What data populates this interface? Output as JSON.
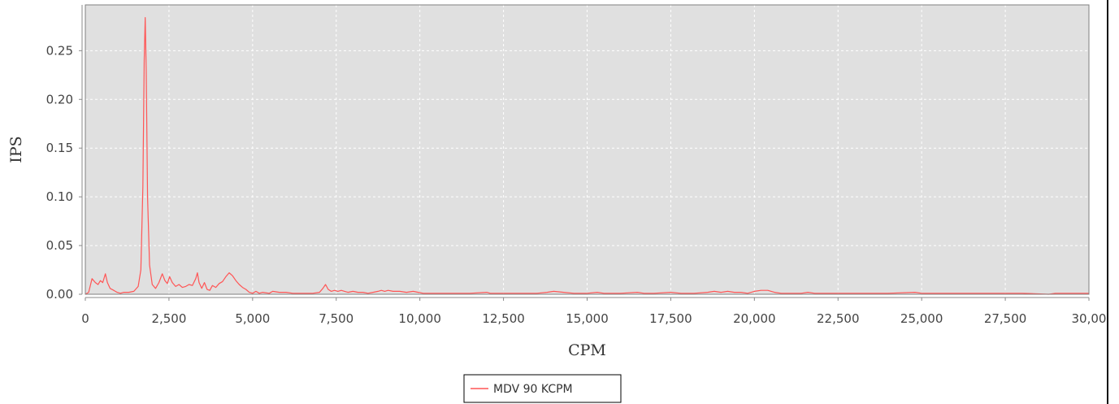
{
  "chart_data": {
    "type": "line",
    "title": "",
    "xlabel": "CPM",
    "ylabel": "IPS",
    "xlim": [
      0,
      30000
    ],
    "ylim": [
      0,
      0.297
    ],
    "x_ticks": [
      "0",
      "2,500",
      "5,000",
      "7,500",
      "10,000",
      "12,500",
      "15,000",
      "17,500",
      "20,000",
      "22,500",
      "25,000",
      "27,500",
      "30,00"
    ],
    "y_ticks": [
      "0.00",
      "0.05",
      "0.10",
      "0.15",
      "0.20",
      "0.25"
    ],
    "grid": true,
    "legend_position": "bottom-center",
    "series": [
      {
        "name": "MDV 90 KCPM",
        "color": "#ff5555",
        "points": [
          [
            0,
            0.0
          ],
          [
            100,
            0.002
          ],
          [
            200,
            0.016
          ],
          [
            300,
            0.012
          ],
          [
            380,
            0.01
          ],
          [
            450,
            0.014
          ],
          [
            520,
            0.012
          ],
          [
            600,
            0.021
          ],
          [
            660,
            0.012
          ],
          [
            740,
            0.006
          ],
          [
            850,
            0.004
          ],
          [
            950,
            0.002
          ],
          [
            1050,
            0.001
          ],
          [
            1150,
            0.002
          ],
          [
            1300,
            0.002
          ],
          [
            1450,
            0.003
          ],
          [
            1580,
            0.008
          ],
          [
            1660,
            0.025
          ],
          [
            1720,
            0.11
          ],
          [
            1760,
            0.24
          ],
          [
            1790,
            0.284
          ],
          [
            1820,
            0.23
          ],
          [
            1860,
            0.1
          ],
          [
            1920,
            0.03
          ],
          [
            2000,
            0.01
          ],
          [
            2100,
            0.006
          ],
          [
            2200,
            0.012
          ],
          [
            2300,
            0.021
          ],
          [
            2380,
            0.014
          ],
          [
            2450,
            0.011
          ],
          [
            2520,
            0.018
          ],
          [
            2600,
            0.012
          ],
          [
            2700,
            0.008
          ],
          [
            2800,
            0.01
          ],
          [
            2900,
            0.007
          ],
          [
            3000,
            0.008
          ],
          [
            3100,
            0.01
          ],
          [
            3200,
            0.009
          ],
          [
            3300,
            0.016
          ],
          [
            3350,
            0.022
          ],
          [
            3400,
            0.012
          ],
          [
            3480,
            0.006
          ],
          [
            3560,
            0.012
          ],
          [
            3640,
            0.005
          ],
          [
            3720,
            0.004
          ],
          [
            3800,
            0.009
          ],
          [
            3900,
            0.007
          ],
          [
            4000,
            0.011
          ],
          [
            4100,
            0.013
          ],
          [
            4200,
            0.018
          ],
          [
            4300,
            0.022
          ],
          [
            4400,
            0.019
          ],
          [
            4500,
            0.014
          ],
          [
            4600,
            0.01
          ],
          [
            4700,
            0.007
          ],
          [
            4800,
            0.005
          ],
          [
            4900,
            0.002
          ],
          [
            5000,
            0.001
          ],
          [
            5100,
            0.003
          ],
          [
            5200,
            0.001
          ],
          [
            5300,
            0.002
          ],
          [
            5500,
            0.001
          ],
          [
            5600,
            0.003
          ],
          [
            5800,
            0.002
          ],
          [
            6000,
            0.002
          ],
          [
            6200,
            0.001
          ],
          [
            6500,
            0.001
          ],
          [
            6800,
            0.001
          ],
          [
            7000,
            0.002
          ],
          [
            7100,
            0.006
          ],
          [
            7180,
            0.01
          ],
          [
            7260,
            0.005
          ],
          [
            7350,
            0.003
          ],
          [
            7450,
            0.004
          ],
          [
            7550,
            0.003
          ],
          [
            7650,
            0.004
          ],
          [
            7750,
            0.003
          ],
          [
            7850,
            0.002
          ],
          [
            8000,
            0.003
          ],
          [
            8150,
            0.002
          ],
          [
            8300,
            0.002
          ],
          [
            8450,
            0.001
          ],
          [
            8600,
            0.002
          ],
          [
            8750,
            0.003
          ],
          [
            8850,
            0.004
          ],
          [
            8950,
            0.003
          ],
          [
            9050,
            0.004
          ],
          [
            9200,
            0.003
          ],
          [
            9400,
            0.003
          ],
          [
            9600,
            0.002
          ],
          [
            9800,
            0.003
          ],
          [
            9950,
            0.002
          ],
          [
            10100,
            0.001
          ],
          [
            10500,
            0.001
          ],
          [
            11000,
            0.001
          ],
          [
            11500,
            0.001
          ],
          [
            12000,
            0.002
          ],
          [
            12100,
            0.001
          ],
          [
            12500,
            0.001
          ],
          [
            13000,
            0.001
          ],
          [
            13500,
            0.001
          ],
          [
            13800,
            0.002
          ],
          [
            14000,
            0.003
          ],
          [
            14300,
            0.002
          ],
          [
            14600,
            0.001
          ],
          [
            15000,
            0.001
          ],
          [
            15300,
            0.002
          ],
          [
            15500,
            0.001
          ],
          [
            16000,
            0.001
          ],
          [
            16500,
            0.002
          ],
          [
            16700,
            0.001
          ],
          [
            17000,
            0.001
          ],
          [
            17500,
            0.002
          ],
          [
            17800,
            0.001
          ],
          [
            18200,
            0.001
          ],
          [
            18600,
            0.002
          ],
          [
            18800,
            0.003
          ],
          [
            19000,
            0.002
          ],
          [
            19200,
            0.003
          ],
          [
            19400,
            0.002
          ],
          [
            19600,
            0.002
          ],
          [
            19800,
            0.001
          ],
          [
            20000,
            0.003
          ],
          [
            20200,
            0.004
          ],
          [
            20400,
            0.004
          ],
          [
            20600,
            0.002
          ],
          [
            20800,
            0.001
          ],
          [
            21000,
            0.001
          ],
          [
            21400,
            0.001
          ],
          [
            21600,
            0.002
          ],
          [
            21800,
            0.001
          ],
          [
            22500,
            0.001
          ],
          [
            23000,
            0.001
          ],
          [
            24000,
            0.001
          ],
          [
            24800,
            0.002
          ],
          [
            25000,
            0.001
          ],
          [
            26000,
            0.001
          ],
          [
            27000,
            0.001
          ],
          [
            28000,
            0.001
          ],
          [
            28800,
            0.0
          ],
          [
            29000,
            0.001
          ],
          [
            30000,
            0.001
          ]
        ]
      }
    ]
  }
}
